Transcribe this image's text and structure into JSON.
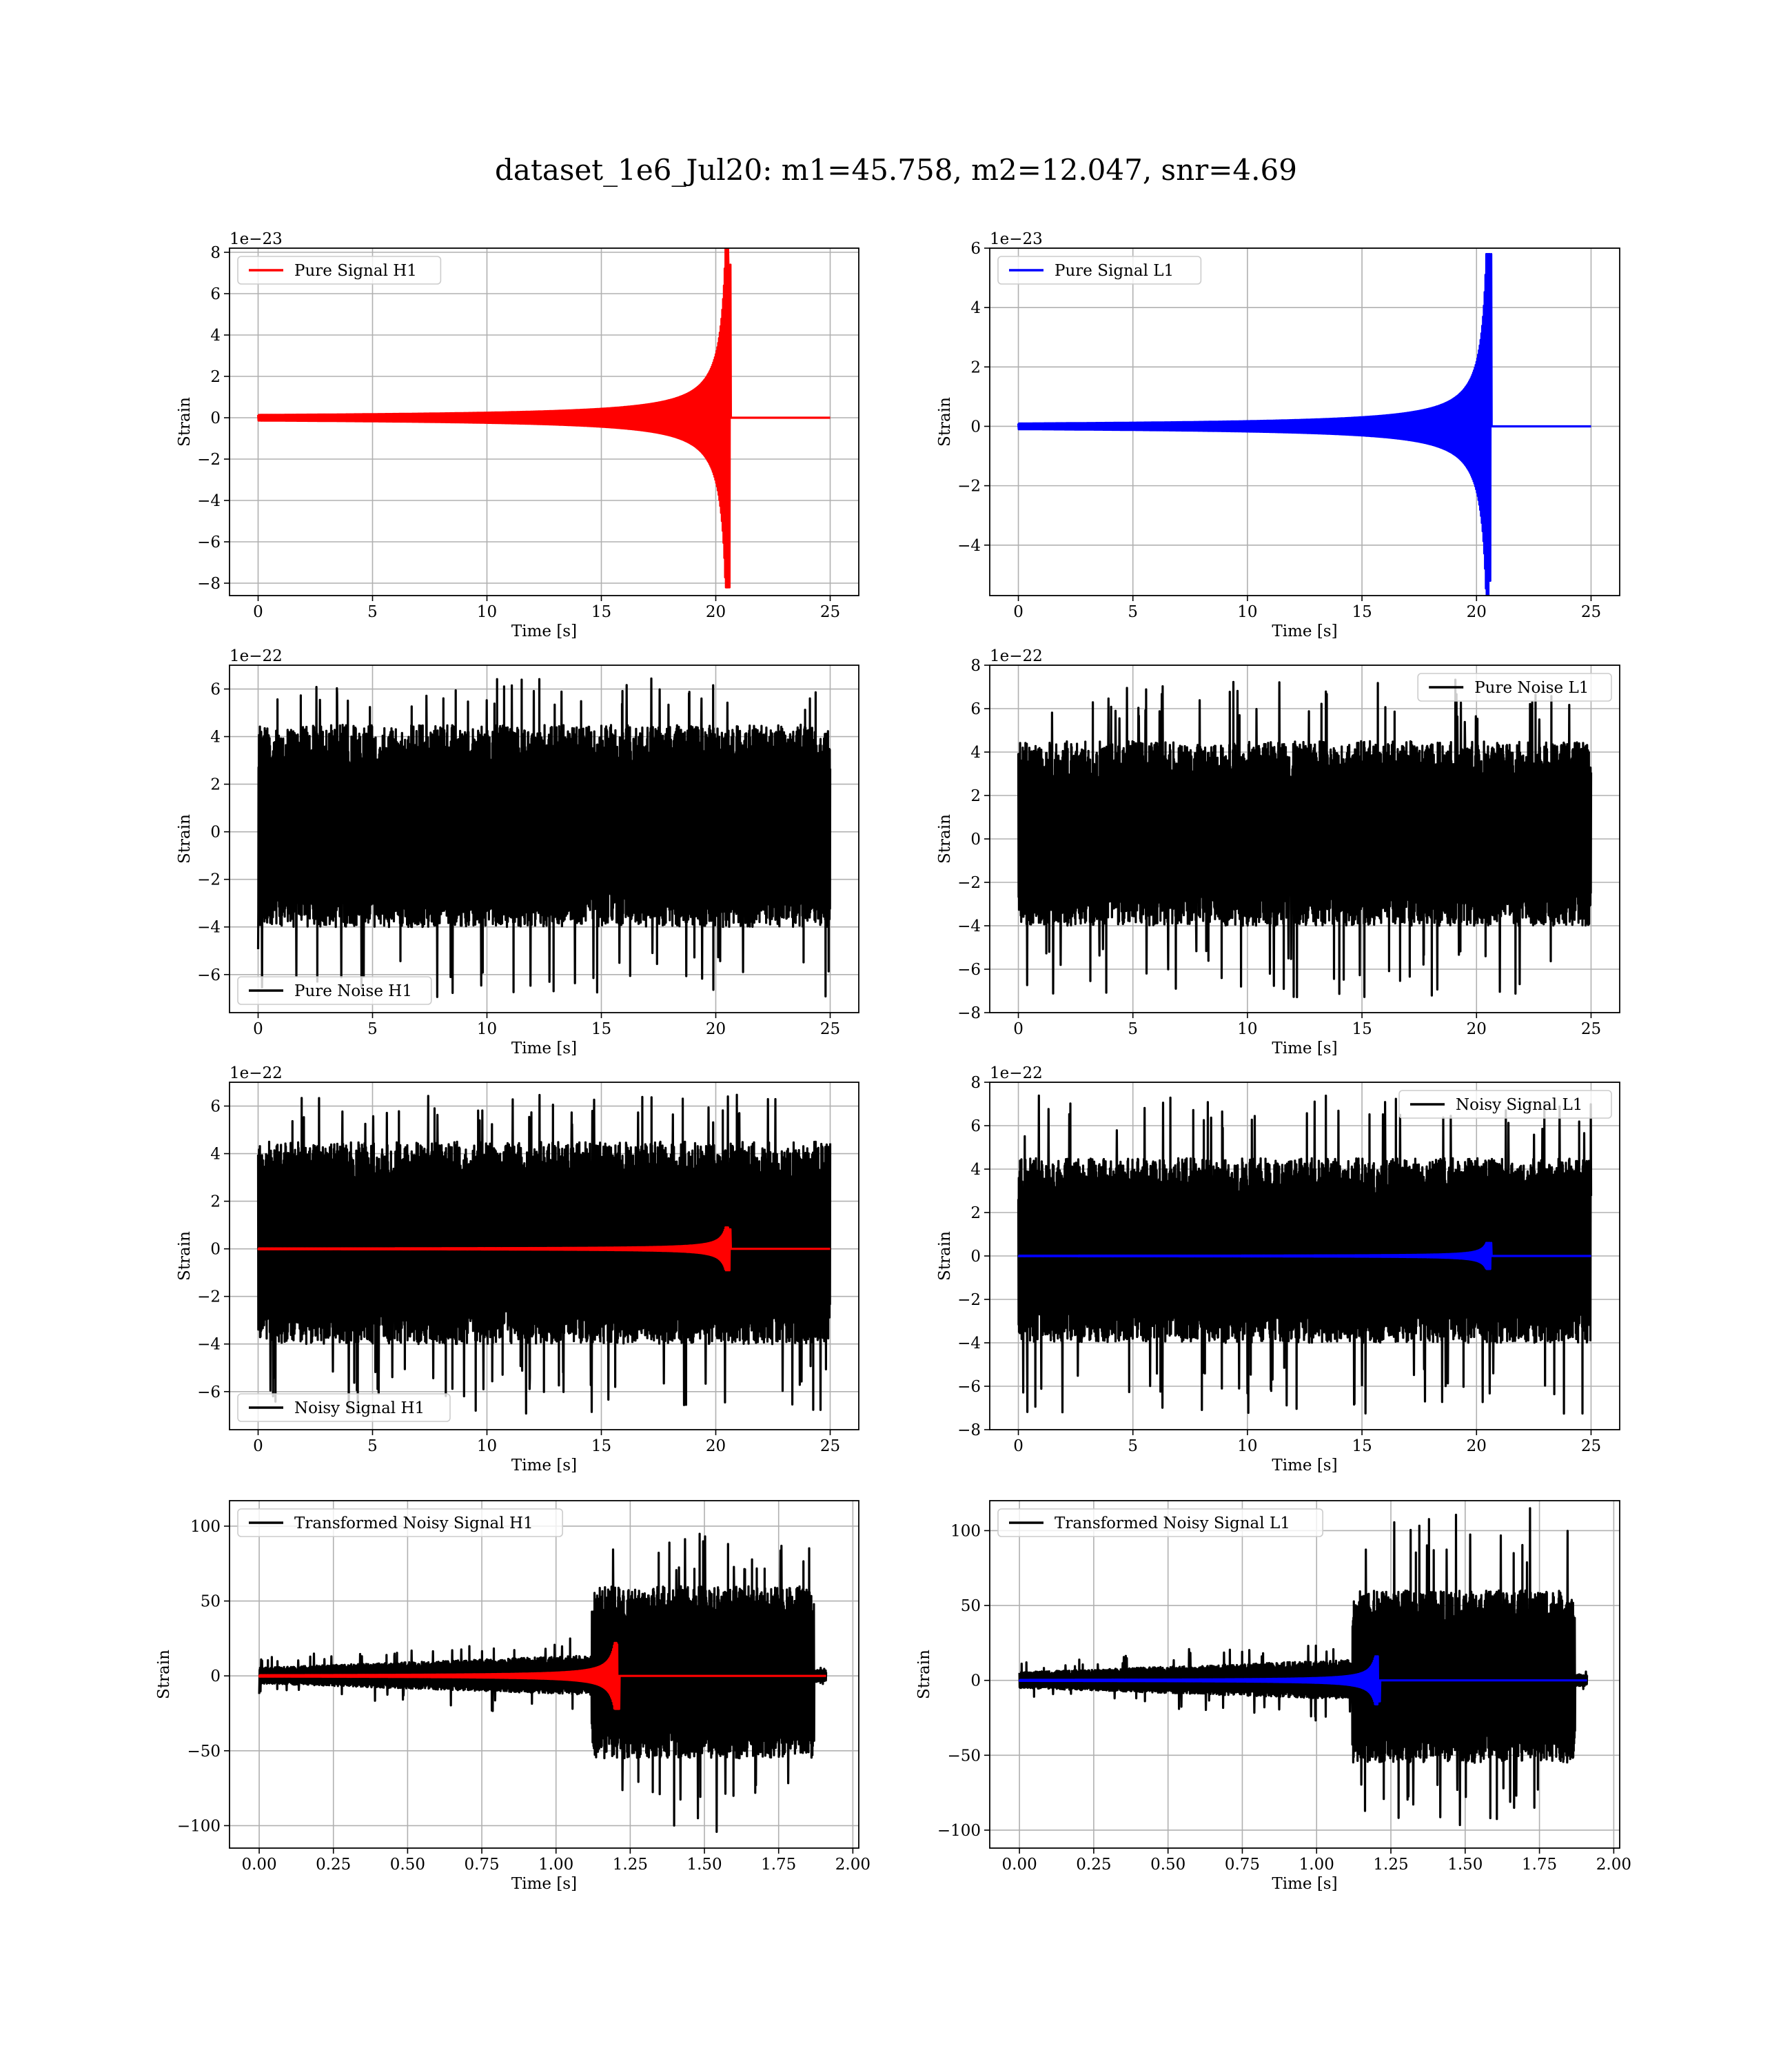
{
  "suptitle": "dataset_1e6_Jul20: m1=45.758, m2=12.047, snr=4.69",
  "colors": {
    "h1_signal": "#ff0000",
    "l1_signal": "#0000ff",
    "noise": "#000000",
    "grid": "#b0b0b0"
  },
  "chart_data": [
    {
      "id": "pure-signal-h1",
      "type": "line",
      "detector": "H1",
      "kind": "pure_signal",
      "xlabel": "Time [s]",
      "ylabel": "Strain",
      "offset_text": "1e−23",
      "xlim": [
        -1.25,
        26.25
      ],
      "ylim": [
        -8.6,
        8.2
      ],
      "xticks": [
        0,
        5,
        10,
        15,
        20,
        25
      ],
      "yticks": [
        -8,
        -6,
        -4,
        -2,
        0,
        2,
        4,
        6,
        8
      ],
      "legend": {
        "location": "upper-left"
      },
      "series": [
        {
          "name": "Pure Signal H1",
          "color": "#ff0000",
          "duration": 25,
          "merger_time": 20.6,
          "peak_positive": 7.4,
          "peak_negative": -8.2,
          "envelope_at_t19": 2.0
        }
      ]
    },
    {
      "id": "pure-signal-l1",
      "type": "line",
      "detector": "L1",
      "kind": "pure_signal",
      "xlabel": "Time [s]",
      "ylabel": "Strain",
      "offset_text": "1e−23",
      "xlim": [
        -1.25,
        26.25
      ],
      "ylim": [
        -5.7,
        6.0
      ],
      "xticks": [
        0,
        5,
        10,
        15,
        20,
        25
      ],
      "yticks": [
        -4,
        -2,
        0,
        2,
        4,
        6
      ],
      "legend": {
        "location": "upper-left"
      },
      "series": [
        {
          "name": "Pure Signal L1",
          "color": "#0000ff",
          "duration": 25,
          "merger_time": 20.6,
          "peak_positive": 5.8,
          "peak_negative": -5.2,
          "envelope_at_t19": 1.2
        }
      ]
    },
    {
      "id": "pure-noise-h1",
      "type": "line",
      "detector": "H1",
      "kind": "pure_noise",
      "xlabel": "Time [s]",
      "ylabel": "Strain",
      "offset_text": "1e−22",
      "xlim": [
        -1.25,
        26.25
      ],
      "ylim": [
        -7.6,
        7.0
      ],
      "xticks": [
        0,
        5,
        10,
        15,
        20,
        25
      ],
      "yticks": [
        -6,
        -4,
        -2,
        0,
        2,
        4,
        6
      ],
      "legend": {
        "location": "lower-left"
      },
      "series": [
        {
          "name": "Pure Noise H1",
          "color": "#000000",
          "duration": 25,
          "band": [
            -4.0,
            4.5
          ],
          "max": 6.5,
          "min": -7.0
        }
      ]
    },
    {
      "id": "pure-noise-l1",
      "type": "line",
      "detector": "L1",
      "kind": "pure_noise",
      "xlabel": "Time [s]",
      "ylabel": "Strain",
      "offset_text": "1e−22",
      "xlim": [
        -1.25,
        26.25
      ],
      "ylim": [
        -8.0,
        8.0
      ],
      "xticks": [
        0,
        5,
        10,
        15,
        20,
        25
      ],
      "yticks": [
        -8,
        -6,
        -4,
        -2,
        0,
        2,
        4,
        6,
        8
      ],
      "legend": {
        "location": "upper-right"
      },
      "series": [
        {
          "name": "Pure Noise L1",
          "color": "#000000",
          "duration": 25,
          "band": [
            -4.0,
            4.5
          ],
          "max": 7.4,
          "min": -7.3
        }
      ]
    },
    {
      "id": "noisy-signal-h1",
      "type": "line",
      "detector": "H1",
      "kind": "noisy_signal",
      "xlabel": "Time [s]",
      "ylabel": "Strain",
      "offset_text": "1e−22",
      "xlim": [
        -1.25,
        26.25
      ],
      "ylim": [
        -7.6,
        7.0
      ],
      "xticks": [
        0,
        5,
        10,
        15,
        20,
        25
      ],
      "yticks": [
        -6,
        -4,
        -2,
        0,
        2,
        4,
        6
      ],
      "legend": {
        "location": "lower-left"
      },
      "series": [
        {
          "name": "Noisy Signal H1",
          "color": "#000000",
          "duration": 25,
          "band": [
            -4.0,
            4.5
          ],
          "max": 6.5,
          "min": -7.0
        },
        {
          "color": "#ff0000",
          "duration": 25,
          "merger_time": 20.6,
          "peak_positive": 0.82,
          "peak_negative": -0.9
        }
      ]
    },
    {
      "id": "noisy-signal-l1",
      "type": "line",
      "detector": "L1",
      "kind": "noisy_signal",
      "xlabel": "Time [s]",
      "ylabel": "Strain",
      "offset_text": "1e−22",
      "xlim": [
        -1.25,
        26.25
      ],
      "ylim": [
        -8.0,
        8.0
      ],
      "xticks": [
        0,
        5,
        10,
        15,
        20,
        25
      ],
      "yticks": [
        -8,
        -6,
        -4,
        -2,
        0,
        2,
        4,
        6,
        8
      ],
      "legend": {
        "location": "upper-right"
      },
      "series": [
        {
          "name": "Noisy Signal L1",
          "color": "#000000",
          "duration": 25,
          "band": [
            -4.0,
            4.5
          ],
          "max": 7.4,
          "min": -7.3
        },
        {
          "color": "#0000ff",
          "duration": 25,
          "merger_time": 20.6,
          "peak_positive": 0.6,
          "peak_negative": -0.6
        }
      ]
    },
    {
      "id": "transformed-h1",
      "type": "line",
      "detector": "H1",
      "kind": "transformed",
      "xlabel": "Time [s]",
      "ylabel": "Strain",
      "offset_text": "",
      "xlim": [
        -0.1,
        2.02
      ],
      "ylim": [
        -115,
        117
      ],
      "xticks": [
        0.0,
        0.25,
        0.5,
        0.75,
        1.0,
        1.25,
        1.5,
        1.75,
        2.0
      ],
      "yticks": [
        -100,
        -50,
        0,
        50,
        100
      ],
      "legend": {
        "location": "upper-left"
      },
      "series": [
        {
          "name": "Transformed Noisy Signal H1",
          "color": "#000000",
          "duration": 1.91,
          "jump_time": 1.12,
          "end_time": 1.87,
          "early_band": 7,
          "late_band": [
            -55,
            60
          ],
          "max": 95,
          "min": -107
        },
        {
          "color": "#ff0000",
          "duration": 1.91,
          "merger_time": 1.21,
          "peak_positive": 21,
          "peak_negative": -22
        }
      ]
    },
    {
      "id": "transformed-l1",
      "type": "line",
      "detector": "L1",
      "kind": "transformed",
      "xlabel": "Time [s]",
      "ylabel": "Strain",
      "offset_text": "",
      "xlim": [
        -0.1,
        2.02
      ],
      "ylim": [
        -112,
        120
      ],
      "xticks": [
        0.0,
        0.25,
        0.5,
        0.75,
        1.0,
        1.25,
        1.5,
        1.75,
        2.0
      ],
      "yticks": [
        -100,
        -50,
        0,
        50,
        100
      ],
      "legend": {
        "location": "upper-left"
      },
      "series": [
        {
          "name": "Transformed Noisy Signal L1",
          "color": "#000000",
          "duration": 1.91,
          "jump_time": 1.12,
          "end_time": 1.87,
          "early_band": 7,
          "late_band": [
            -55,
            60
          ],
          "max": 117,
          "min": -102
        },
        {
          "color": "#0000ff",
          "duration": 1.91,
          "merger_time": 1.21,
          "peak_positive": 16,
          "peak_negative": -14
        }
      ]
    }
  ]
}
